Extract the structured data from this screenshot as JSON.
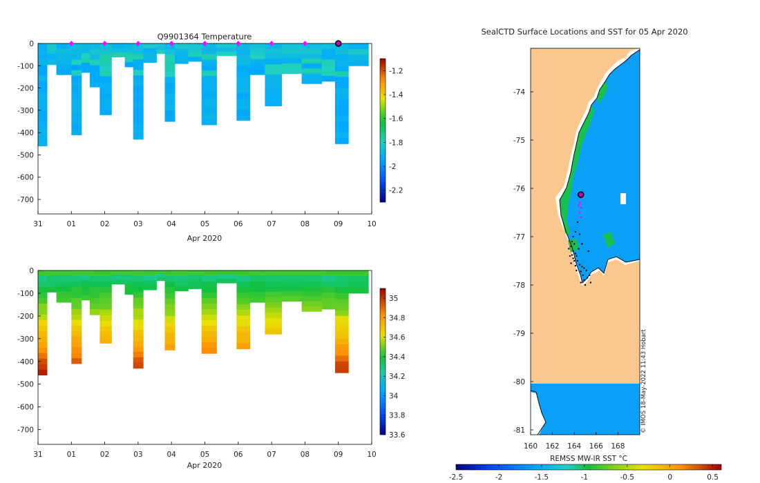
{
  "figure": {
    "copyright": "© IMOS 18-May-2022 11:43 Hobart"
  },
  "chart_data": [
    {
      "id": "temperature",
      "type": "heatmap",
      "title": "Q9901364  Temperature",
      "xlabel": "Apr 2020",
      "ylabel": "",
      "x_ticks": [
        "31",
        "01",
        "02",
        "03",
        "04",
        "05",
        "06",
        "07",
        "08",
        "09",
        "10"
      ],
      "y_ticks": [
        0,
        -100,
        -200,
        -300,
        -400,
        -500,
        -600,
        -700
      ],
      "ylim": [
        -765,
        0
      ],
      "xlim": [
        0,
        10
      ],
      "colorbar": {
        "min": -2.3,
        "max": -1.1,
        "ticks": [
          "-1.2",
          "-1.4",
          "-1.6",
          "-1.8",
          "-2",
          "-2.2"
        ],
        "tick_values": [
          -1.2,
          -1.4,
          -1.6,
          -1.8,
          -2.0,
          -2.2
        ]
      },
      "surface_markers_day": [
        1,
        2,
        3,
        4,
        5,
        6,
        7,
        8
      ],
      "current_marker_day": 9,
      "profiles": [
        {
          "start_day": 0.0,
          "end_day": 0.27,
          "max_depth": 460
        },
        {
          "start_day": 0.27,
          "end_day": 0.55,
          "max_depth": 95
        },
        {
          "start_day": 0.55,
          "end_day": 1.0,
          "max_depth": 140
        },
        {
          "start_day": 1.0,
          "end_day": 1.3,
          "max_depth": 410
        },
        {
          "start_day": 1.3,
          "end_day": 1.55,
          "max_depth": 130
        },
        {
          "start_day": 1.55,
          "end_day": 1.85,
          "max_depth": 195
        },
        {
          "start_day": 1.85,
          "end_day": 2.2,
          "max_depth": 320
        },
        {
          "start_day": 2.2,
          "end_day": 2.6,
          "max_depth": 60
        },
        {
          "start_day": 2.6,
          "end_day": 2.85,
          "max_depth": 105
        },
        {
          "start_day": 2.85,
          "end_day": 3.15,
          "max_depth": 430
        },
        {
          "start_day": 3.15,
          "end_day": 3.55,
          "max_depth": 85
        },
        {
          "start_day": 3.55,
          "end_day": 3.8,
          "max_depth": 45
        },
        {
          "start_day": 3.8,
          "end_day": 4.1,
          "max_depth": 350
        },
        {
          "start_day": 4.1,
          "end_day": 4.5,
          "max_depth": 90
        },
        {
          "start_day": 4.5,
          "end_day": 4.9,
          "max_depth": 80
        },
        {
          "start_day": 4.9,
          "end_day": 5.35,
          "max_depth": 365
        },
        {
          "start_day": 5.35,
          "end_day": 5.95,
          "max_depth": 55
        },
        {
          "start_day": 5.95,
          "end_day": 6.35,
          "max_depth": 345
        },
        {
          "start_day": 6.35,
          "end_day": 6.8,
          "max_depth": 140
        },
        {
          "start_day": 6.8,
          "end_day": 7.3,
          "max_depth": 280
        },
        {
          "start_day": 7.3,
          "end_day": 7.9,
          "max_depth": 135
        },
        {
          "start_day": 7.9,
          "end_day": 8.5,
          "max_depth": 180
        },
        {
          "start_day": 8.5,
          "end_day": 8.9,
          "max_depth": 170
        },
        {
          "start_day": 8.9,
          "end_day": 9.3,
          "max_depth": 450
        },
        {
          "start_day": 9.3,
          "end_day": 9.9,
          "max_depth": 100
        }
      ]
    },
    {
      "id": "salinity",
      "type": "heatmap",
      "title": "",
      "xlabel": "Apr 2020",
      "ylabel": "",
      "x_ticks": [
        "31",
        "01",
        "02",
        "03",
        "04",
        "05",
        "06",
        "07",
        "08",
        "09",
        "10"
      ],
      "y_ticks": [
        0,
        -100,
        -200,
        -300,
        -400,
        -500,
        -600,
        -700
      ],
      "ylim": [
        -765,
        0
      ],
      "xlim": [
        0,
        10
      ],
      "colorbar": {
        "min": 33.6,
        "max": 35.1,
        "ticks": [
          "35",
          "34.8",
          "34.6",
          "34.4",
          "34.2",
          "34",
          "33.8",
          "33.6"
        ],
        "tick_values": [
          35,
          34.8,
          34.6,
          34.4,
          34.2,
          34,
          33.8,
          33.6
        ]
      }
    },
    {
      "id": "sst-map",
      "type": "heatmap",
      "title": "SealCTD Surface Locations and SST for 05 Apr 2020",
      "xlabel": "",
      "colorbar_label": "REMSS MW-IR SST °C",
      "x_ticks": [
        "160",
        "162",
        "164",
        "166",
        "168"
      ],
      "x_tick_values": [
        160,
        162,
        164,
        166,
        168
      ],
      "y_ticks": [
        "-74",
        "-75",
        "-76",
        "-77",
        "-78",
        "-79",
        "-80",
        "-81"
      ],
      "y_tick_values": [
        -74,
        -75,
        -76,
        -77,
        -78,
        -79,
        -80,
        -81
      ],
      "xlim": [
        160,
        170
      ],
      "ylim": [
        -81.1,
        -73.1
      ],
      "colorbar": {
        "min": -2.5,
        "max": 0.6,
        "ticks": [
          "-2.5",
          "-2",
          "-1.5",
          "-1",
          "-0.5",
          "0",
          "0.5"
        ],
        "tick_values": [
          -2.5,
          -2,
          -1.5,
          -1,
          -0.5,
          0,
          0.5
        ]
      },
      "current_position": {
        "lon": 164.6,
        "lat": -76.13
      },
      "track_magenta": [
        {
          "lon": 164.6,
          "lat": -76.2
        },
        {
          "lon": 164.5,
          "lat": -76.3
        },
        {
          "lon": 164.6,
          "lat": -76.4
        },
        {
          "lon": 164.5,
          "lat": -76.5
        },
        {
          "lon": 164.6,
          "lat": -76.6
        },
        {
          "lon": 164.4,
          "lat": -76.35
        }
      ],
      "track_black": [
        {
          "lon": 164.3,
          "lat": -76.7
        },
        {
          "lon": 164.1,
          "lat": -76.9
        },
        {
          "lon": 163.9,
          "lat": -77.0
        },
        {
          "lon": 163.8,
          "lat": -77.1
        },
        {
          "lon": 164.0,
          "lat": -77.15
        },
        {
          "lon": 163.7,
          "lat": -77.2
        },
        {
          "lon": 164.4,
          "lat": -77.25
        },
        {
          "lon": 163.9,
          "lat": -77.3
        },
        {
          "lon": 164.1,
          "lat": -77.35
        },
        {
          "lon": 163.8,
          "lat": -77.38
        },
        {
          "lon": 164.2,
          "lat": -77.4
        },
        {
          "lon": 163.9,
          "lat": -77.45
        },
        {
          "lon": 164.0,
          "lat": -77.5
        },
        {
          "lon": 164.3,
          "lat": -77.5
        },
        {
          "lon": 163.7,
          "lat": -77.55
        },
        {
          "lon": 164.5,
          "lat": -77.58
        },
        {
          "lon": 164.1,
          "lat": -77.6
        },
        {
          "lon": 164.7,
          "lat": -77.62
        },
        {
          "lon": 164.9,
          "lat": -77.65
        },
        {
          "lon": 164.2,
          "lat": -77.7
        },
        {
          "lon": 164.6,
          "lat": -77.72
        },
        {
          "lon": 165.1,
          "lat": -77.7
        },
        {
          "lon": 164.8,
          "lat": -77.8
        },
        {
          "lon": 165.2,
          "lat": -77.85
        },
        {
          "lon": 164.9,
          "lat": -77.9
        },
        {
          "lon": 165.4,
          "lat": -77.8
        },
        {
          "lon": 164.6,
          "lat": -77.95
        },
        {
          "lon": 165.0,
          "lat": -78.0
        },
        {
          "lon": 165.5,
          "lat": -77.95
        },
        {
          "lon": 163.6,
          "lat": -77.4
        },
        {
          "lon": 163.5,
          "lat": -77.25
        },
        {
          "lon": 164.5,
          "lat": -76.95
        },
        {
          "lon": 165.3,
          "lat": -77.3
        },
        {
          "lon": 164.7,
          "lat": -77.15
        }
      ]
    }
  ]
}
